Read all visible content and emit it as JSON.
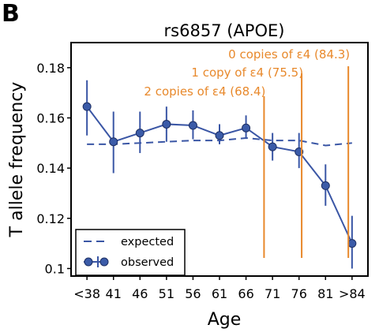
{
  "panel_label": "B",
  "chart_data": {
    "type": "line",
    "title": "rs6857 (APOE)",
    "xlabel": "Age",
    "ylabel": "T allele frequency",
    "x_ticks": [
      "<38",
      "41",
      "46",
      "51",
      "56",
      "61",
      "66",
      "71",
      "76",
      "81",
      ">84"
    ],
    "y_ticks": [
      "0.1",
      "0.12",
      "0.14",
      "0.16",
      "0.18"
    ],
    "y_tick_values": [
      0.1,
      0.12,
      0.14,
      0.16,
      0.18
    ],
    "ylim": [
      0.097,
      0.19
    ],
    "xlim": [
      -0.6,
      10.6
    ],
    "grid": false,
    "legend_position": "lower-left",
    "series": [
      {
        "name": "expected",
        "style": "dashed",
        "color": "#3a56a5",
        "values": [
          0.1495,
          0.1495,
          0.15,
          0.1505,
          0.151,
          0.151,
          0.152,
          0.151,
          0.151,
          0.149,
          0.15
        ]
      },
      {
        "name": "observed",
        "style": "solid-markers",
        "color": "#3a56a5",
        "values": [
          0.1645,
          0.1505,
          0.154,
          0.1575,
          0.157,
          0.153,
          0.156,
          0.1485,
          0.1465,
          0.133,
          0.11
        ],
        "error_low": [
          0.153,
          0.138,
          0.146,
          0.1505,
          0.1515,
          0.1495,
          0.152,
          0.143,
          0.14,
          0.125,
          0.1
        ],
        "error_high": [
          0.175,
          0.1625,
          0.1625,
          0.1645,
          0.163,
          0.1575,
          0.161,
          0.154,
          0.154,
          0.1415,
          0.121
        ]
      }
    ],
    "vertical_lines": [
      {
        "label": "2 copies of ε4 (68.4)",
        "x": 6.68,
        "color": "#e8892c"
      },
      {
        "label": "1 copy of ε4 (75.5)",
        "x": 8.1,
        "color": "#e8892c"
      },
      {
        "label": "0 copies of ε4 (84.3)",
        "x": 9.86,
        "color": "#e8892c"
      }
    ]
  },
  "legend": {
    "expected_label": "expected",
    "observed_label": "observed"
  },
  "colors": {
    "series": "#3a56a5",
    "marker_fill": "#3b5ba8",
    "marker_edge": "#1d2f63",
    "annotation": "#e8892c"
  }
}
